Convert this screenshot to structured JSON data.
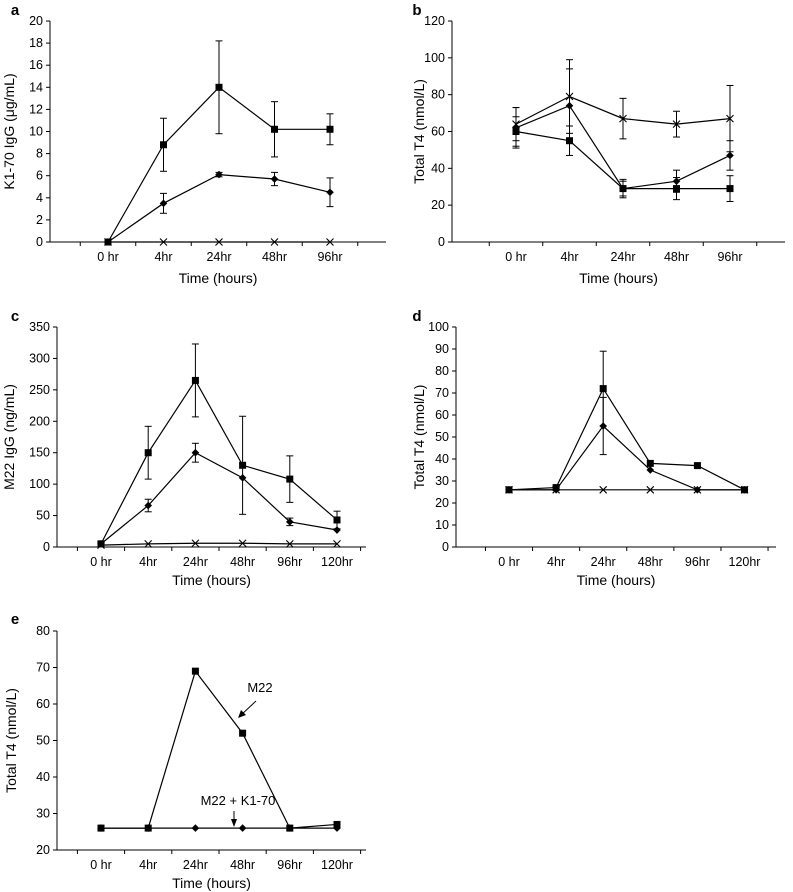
{
  "chart_data": [
    {
      "panel": "a",
      "type": "line",
      "title": "",
      "xlabel": "Time (hours)",
      "ylabel": "K1-70 IgG (μg/mL)",
      "categories": [
        "0 hr",
        "4hr",
        "24hr",
        "48hr",
        "96hr"
      ],
      "ylim": [
        0,
        20
      ],
      "yticks": [
        0,
        2,
        4,
        6,
        8,
        10,
        12,
        14,
        16,
        18,
        20
      ],
      "series": [
        {
          "name": "square",
          "marker": "square",
          "values": [
            0,
            8.8,
            14.0,
            10.2,
            10.2
          ],
          "errors": [
            0,
            2.4,
            4.2,
            2.5,
            1.4
          ]
        },
        {
          "name": "diamond",
          "marker": "diamond",
          "values": [
            0,
            3.5,
            6.1,
            5.7,
            4.5
          ],
          "errors": [
            0,
            0.9,
            0.2,
            0.6,
            1.3
          ]
        },
        {
          "name": "cross",
          "marker": "x",
          "values": [
            0,
            0,
            0,
            0,
            0
          ],
          "errors": [
            0,
            0,
            0,
            0,
            0
          ]
        }
      ]
    },
    {
      "panel": "b",
      "type": "line",
      "title": "",
      "xlabel": "Time (hours)",
      "ylabel": "Total T4 (nmol/L)",
      "categories": [
        "0 hr",
        "4hr",
        "24hr",
        "48hr",
        "96hr"
      ],
      "ylim": [
        0,
        120
      ],
      "yticks": [
        0,
        20,
        40,
        60,
        80,
        100,
        120
      ],
      "series": [
        {
          "name": "cross",
          "marker": "x",
          "values": [
            64,
            79,
            67,
            64,
            67
          ],
          "errors": [
            9,
            20,
            11,
            7,
            18
          ]
        },
        {
          "name": "diamond",
          "marker": "diamond",
          "values": [
            62,
            74,
            29,
            33,
            47
          ],
          "errors": [
            11,
            20,
            4,
            6,
            8
          ]
        },
        {
          "name": "square",
          "marker": "square",
          "values": [
            60,
            55,
            29,
            29,
            29
          ],
          "errors": [
            8,
            8,
            5,
            6,
            7
          ]
        }
      ]
    },
    {
      "panel": "c",
      "type": "line",
      "title": "",
      "xlabel": "Time (hours)",
      "ylabel": "M22 IgG (ng/mL)",
      "categories": [
        "0 hr",
        "4hr",
        "24hr",
        "48hr",
        "96hr",
        "120hr"
      ],
      "ylim": [
        0,
        350
      ],
      "yticks": [
        0,
        50,
        100,
        150,
        200,
        250,
        300,
        350
      ],
      "series": [
        {
          "name": "square",
          "marker": "square",
          "values": [
            5,
            150,
            265,
            130,
            108,
            43
          ],
          "errors": [
            0,
            42,
            58,
            78,
            37,
            14
          ]
        },
        {
          "name": "diamond",
          "marker": "diamond",
          "values": [
            5,
            66,
            150,
            110,
            40,
            27
          ],
          "errors": [
            0,
            10,
            15,
            0,
            6,
            0
          ]
        },
        {
          "name": "cross",
          "marker": "x",
          "values": [
            3,
            5,
            6,
            6,
            5,
            5
          ],
          "errors": [
            0,
            0,
            0,
            0,
            0,
            0
          ]
        }
      ]
    },
    {
      "panel": "d",
      "type": "line",
      "title": "",
      "xlabel": "Time (hours)",
      "ylabel": "Total T4 (nmol/L)",
      "categories": [
        "0 hr",
        "4hr",
        "24hr",
        "48hr",
        "96hr",
        "120hr"
      ],
      "ylim": [
        0,
        100
      ],
      "yticks": [
        0,
        10,
        20,
        30,
        40,
        50,
        60,
        70,
        80,
        90,
        100
      ],
      "series": [
        {
          "name": "square",
          "marker": "square",
          "values": [
            26,
            27,
            72,
            38,
            37,
            26
          ],
          "errors": [
            0,
            0,
            17,
            0,
            0,
            0
          ]
        },
        {
          "name": "diamond",
          "marker": "diamond",
          "values": [
            26,
            26,
            55,
            35,
            26,
            26
          ],
          "errors": [
            0,
            0,
            13,
            0,
            0,
            0
          ]
        },
        {
          "name": "cross",
          "marker": "x",
          "values": [
            26,
            26,
            26,
            26,
            26,
            26
          ],
          "errors": [
            0,
            0,
            0,
            0,
            0,
            0
          ]
        }
      ]
    },
    {
      "panel": "e",
      "type": "line",
      "title": "",
      "xlabel": "Time (hours)",
      "ylabel": "Total T4 (nmol/L)",
      "categories": [
        "0 hr",
        "4hr",
        "24hr",
        "48hr",
        "96hr",
        "120hr"
      ],
      "ylim": [
        20,
        80
      ],
      "yticks": [
        20,
        30,
        40,
        50,
        60,
        70,
        80
      ],
      "annotations": [
        "M22",
        "M22 + K1-70"
      ],
      "series": [
        {
          "name": "M22",
          "marker": "square",
          "values": [
            26,
            26,
            69,
            52,
            26,
            27
          ],
          "errors": [
            0,
            0,
            0,
            0,
            0,
            0
          ]
        },
        {
          "name": "M22 + K1-70",
          "marker": "diamond",
          "values": [
            26,
            26,
            26,
            26,
            26,
            26
          ],
          "errors": [
            0,
            0,
            0,
            0,
            0,
            0
          ]
        }
      ]
    }
  ]
}
